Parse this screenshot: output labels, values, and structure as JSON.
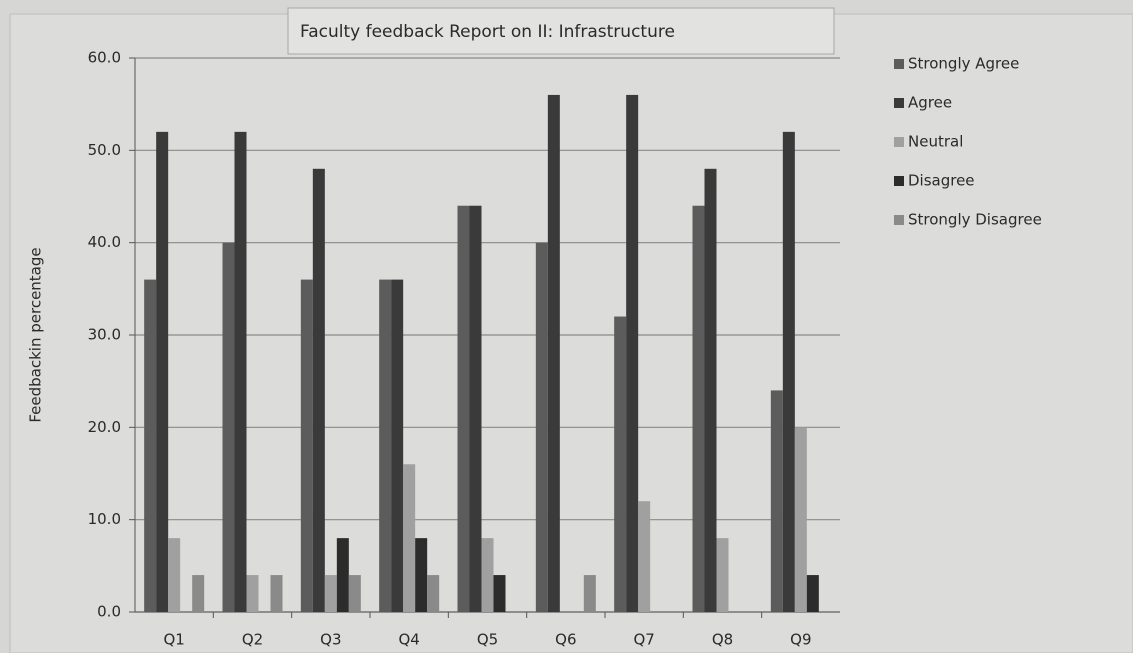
{
  "chart_data": {
    "type": "bar",
    "title": "Faculty feedback Report on II:   Infrastructure",
    "y_label": "Feedbackin percentage",
    "categories": [
      "Q1",
      "Q2",
      "Q3",
      "Q4",
      "Q5",
      "Q6",
      "Q7",
      "Q8",
      "Q9"
    ],
    "series": [
      {
        "name": "Strongly Agree",
        "color": "#5c5c5c",
        "values": [
          36,
          40,
          36,
          36,
          44,
          40,
          32,
          44,
          24
        ]
      },
      {
        "name": "Agree",
        "color": "#3a3a3a",
        "values": [
          52,
          52,
          48,
          36,
          44,
          56,
          56,
          48,
          52
        ]
      },
      {
        "name": "Neutral",
        "color": "#a0a0a0",
        "values": [
          8,
          4,
          4,
          16,
          8,
          0,
          12,
          8,
          20
        ]
      },
      {
        "name": "Disagree",
        "color": "#2c2c2c",
        "values": [
          0,
          0,
          8,
          8,
          4,
          0,
          0,
          0,
          4
        ]
      },
      {
        "name": "Strongly Disagree",
        "color": "#8a8a8a",
        "values": [
          4,
          4,
          4,
          4,
          0,
          4,
          0,
          0,
          0
        ]
      }
    ],
    "ylim": [
      0,
      60
    ],
    "yticks": [
      {
        "value": 0,
        "label": "0.0"
      },
      {
        "value": 10,
        "label": "10.0"
      },
      {
        "value": 20,
        "label": "20.0"
      },
      {
        "value": 30,
        "label": "30.0"
      },
      {
        "value": 40,
        "label": "40.0"
      },
      {
        "value": 50,
        "label": "50.0"
      },
      {
        "value": 60,
        "label": "60.0"
      }
    ],
    "grid": true,
    "legend": "right"
  }
}
